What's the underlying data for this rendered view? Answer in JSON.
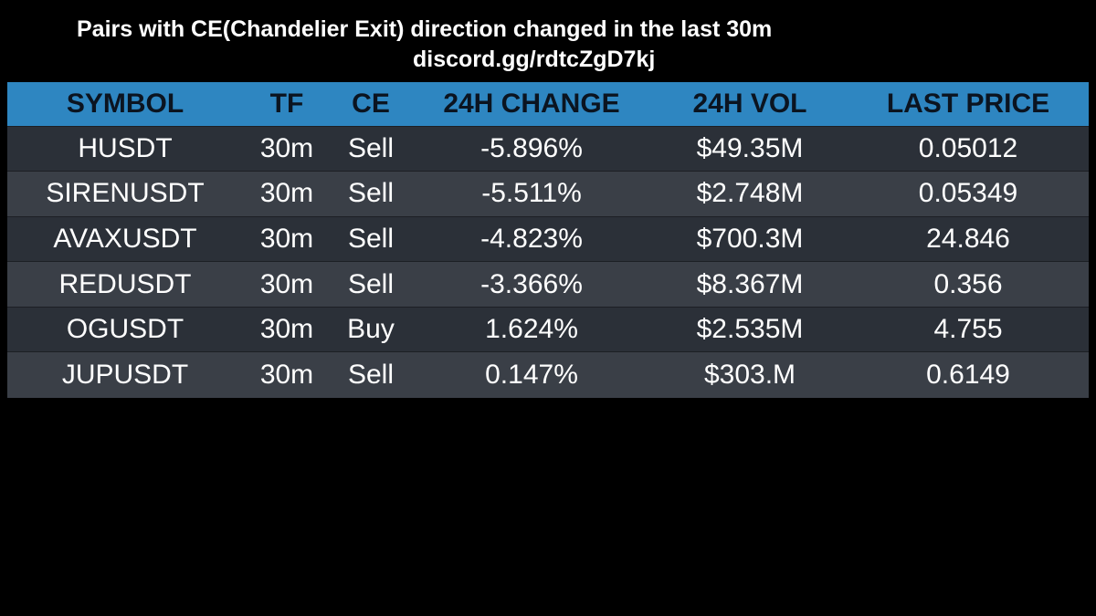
{
  "header": {
    "title": "Pairs with CE(Chandelier Exit) direction changed in the last 30m",
    "link": "discord.gg/rdtcZgD7kj"
  },
  "table": {
    "columns": [
      "SYMBOL",
      "TF",
      "CE",
      "24H CHANGE",
      "24H VOL",
      "LAST PRICE"
    ],
    "rows": [
      {
        "symbol": "HUSDT",
        "tf": "30m",
        "ce": "Sell",
        "change": "-5.896%",
        "vol": "$49.35M",
        "price": "0.05012"
      },
      {
        "symbol": "SIRENUSDT",
        "tf": "30m",
        "ce": "Sell",
        "change": "-5.511%",
        "vol": "$2.748M",
        "price": "0.05349"
      },
      {
        "symbol": "AVAXUSDT",
        "tf": "30m",
        "ce": "Sell",
        "change": "-4.823%",
        "vol": "$700.3M",
        "price": "24.846"
      },
      {
        "symbol": "REDUSDT",
        "tf": "30m",
        "ce": "Sell",
        "change": "-3.366%",
        "vol": "$8.367M",
        "price": "0.356"
      },
      {
        "symbol": "OGUSDT",
        "tf": "30m",
        "ce": "Buy",
        "change": "1.624%",
        "vol": "$2.535M",
        "price": "4.755"
      },
      {
        "symbol": "JUPUSDT",
        "tf": "30m",
        "ce": "Sell",
        "change": "0.147%",
        "vol": "$303.M",
        "price": "0.6149"
      }
    ]
  },
  "colors": {
    "background": "#000000",
    "header_row": "#2e86c1",
    "row_dark": "#2b3038",
    "row_light": "#3a3f47",
    "header_text": "#0b1420",
    "cell_text": "#ffffff"
  }
}
